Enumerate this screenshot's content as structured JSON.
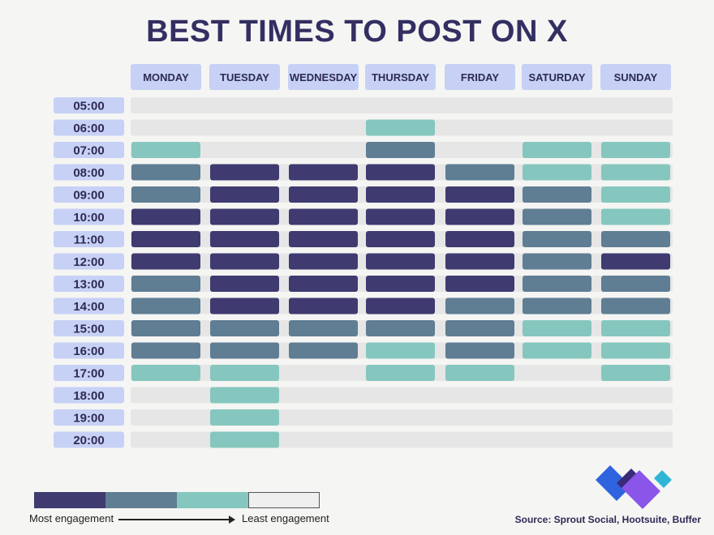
{
  "title": "BEST TIMES TO POST ON X",
  "colors": {
    "level1": "#3f3a70",
    "level2": "#5f7d93",
    "level3": "#85c7be",
    "level4": "#e6e6e6",
    "header_bg": "#c7d1f6",
    "time_bg": "#c7d1f6"
  },
  "chart_data": {
    "type": "heatmap",
    "title": "BEST TIMES TO POST ON X",
    "x": [
      "MONDAY",
      "TUESDAY",
      "WEDNESDAY",
      "THURSDAY",
      "FRIDAY",
      "SATURDAY",
      "SUNDAY"
    ],
    "y": [
      "05:00",
      "06:00",
      "07:00",
      "08:00",
      "09:00",
      "10:00",
      "11:00",
      "12:00",
      "13:00",
      "14:00",
      "15:00",
      "16:00",
      "17:00",
      "18:00",
      "19:00",
      "20:00"
    ],
    "scale_note": "1 = Most engagement, 4 = Least engagement",
    "values": [
      [
        4,
        4,
        4,
        4,
        4,
        4,
        4
      ],
      [
        4,
        4,
        4,
        3,
        4,
        4,
        4
      ],
      [
        3,
        4,
        4,
        2,
        4,
        3,
        3
      ],
      [
        2,
        1,
        1,
        1,
        2,
        3,
        3
      ],
      [
        2,
        1,
        1,
        1,
        1,
        2,
        3
      ],
      [
        1,
        1,
        1,
        1,
        1,
        2,
        3
      ],
      [
        1,
        1,
        1,
        1,
        1,
        2,
        2
      ],
      [
        1,
        1,
        1,
        1,
        1,
        2,
        1
      ],
      [
        2,
        1,
        1,
        1,
        1,
        2,
        2
      ],
      [
        2,
        1,
        1,
        1,
        2,
        2,
        2
      ],
      [
        2,
        2,
        2,
        2,
        2,
        3,
        3
      ],
      [
        2,
        2,
        2,
        3,
        2,
        3,
        3
      ],
      [
        3,
        3,
        4,
        3,
        3,
        4,
        3
      ],
      [
        4,
        3,
        4,
        4,
        4,
        4,
        4
      ],
      [
        4,
        3,
        4,
        4,
        4,
        4,
        4
      ],
      [
        4,
        3,
        4,
        4,
        4,
        4,
        4
      ]
    ]
  },
  "legend": {
    "most": "Most engagement",
    "least": "Least engagement"
  },
  "source": "Source: Sprout Social, Hootsuite, Buffer",
  "logo": {
    "colors": [
      "#2f63e0",
      "#3a2a7a",
      "#8a55e8",
      "#2fb6d6"
    ]
  }
}
